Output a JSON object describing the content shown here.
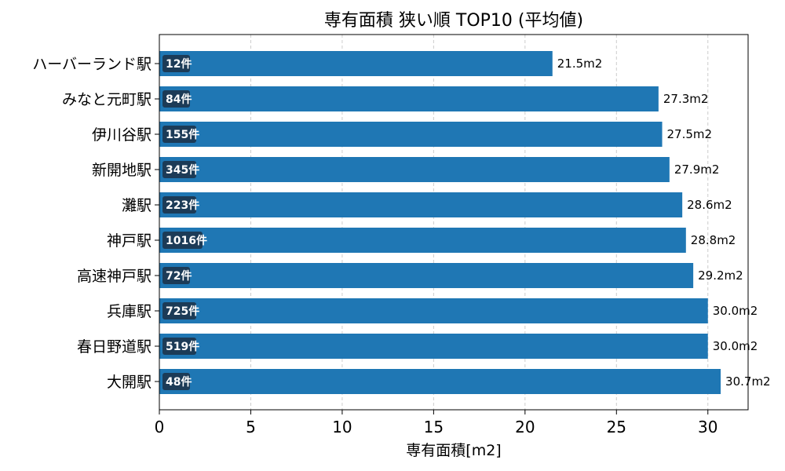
{
  "chart_data": {
    "type": "bar",
    "orientation": "horizontal",
    "title": "専有面積 狭い順 TOP10 (平均値)",
    "xlabel": "専有面積[m2]",
    "ylabel": "",
    "xlim": [
      0,
      32.2
    ],
    "xticks": [
      0,
      5,
      10,
      15,
      20,
      25,
      30
    ],
    "grid": "x-dashed",
    "bar_color": "#1f77b4",
    "count_badge_color": "#1c3b57",
    "value_suffix": "m2",
    "count_suffix": "件",
    "categories": [
      "ハーバーランド駅",
      "みなと元町駅",
      "伊川谷駅",
      "新開地駅",
      "灘駅",
      "神戸駅",
      "高速神戸駅",
      "兵庫駅",
      "春日野道駅",
      "大開駅"
    ],
    "values": [
      21.5,
      27.3,
      27.5,
      27.9,
      28.6,
      28.8,
      29.2,
      30.0,
      30.0,
      30.7
    ],
    "counts": [
      12,
      84,
      155,
      345,
      223,
      1016,
      72,
      725,
      519,
      48
    ]
  }
}
